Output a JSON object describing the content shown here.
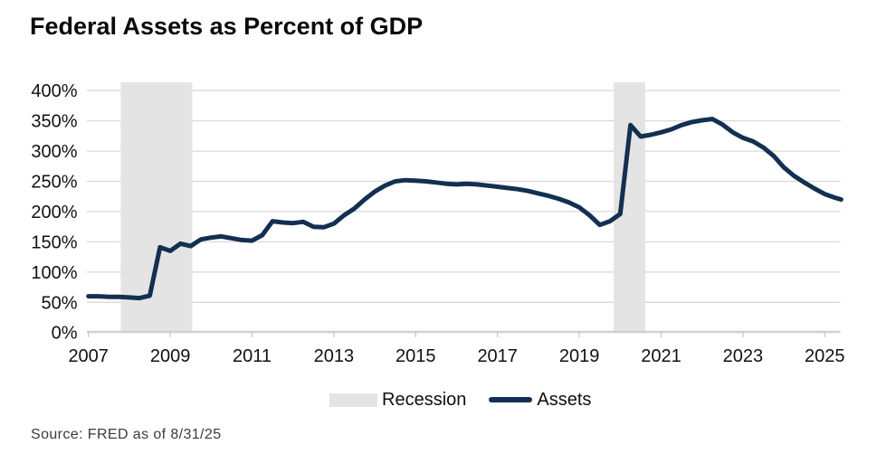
{
  "page": {
    "title": "Federal Assets as Percent of GDP",
    "source": "Source: FRED as of 8/31/25"
  },
  "legend": {
    "recession_label": "Recession",
    "assets_label": "Assets"
  },
  "chart_data": {
    "type": "line",
    "title": "Federal Assets as Percent of GDP",
    "xlabel": "",
    "ylabel": "",
    "xlim": [
      2007.0,
      2025.4
    ],
    "ylim": [
      0,
      400
    ],
    "grid": true,
    "legend_position": "bottom-center",
    "y_ticks": [
      {
        "value": 400,
        "label": "400%"
      },
      {
        "value": 350,
        "label": "350%"
      },
      {
        "value": 300,
        "label": "300%"
      },
      {
        "value": 250,
        "label": "250%"
      },
      {
        "value": 200,
        "label": "200%"
      },
      {
        "value": 150,
        "label": "150%"
      },
      {
        "value": 100,
        "label": "100%"
      },
      {
        "value": 50,
        "label": "50%"
      },
      {
        "value": 0,
        "label": "0%"
      }
    ],
    "x_ticks": [
      {
        "value": 2007,
        "label": "2007"
      },
      {
        "value": 2009,
        "label": "2009"
      },
      {
        "value": 2011,
        "label": "2011"
      },
      {
        "value": 2013,
        "label": "2013"
      },
      {
        "value": 2015,
        "label": "2015"
      },
      {
        "value": 2017,
        "label": "2017"
      },
      {
        "value": 2019,
        "label": "2019"
      },
      {
        "value": 2021,
        "label": "2021"
      },
      {
        "value": 2023,
        "label": "2023"
      },
      {
        "value": 2025,
        "label": "2025"
      }
    ],
    "recession_bands": [
      {
        "start": 2007.79,
        "end": 2009.54
      },
      {
        "start": 2019.84,
        "end": 2020.61
      }
    ],
    "series": [
      {
        "name": "Assets",
        "x": [
          2007.0,
          2007.25,
          2007.5,
          2007.75,
          2008.0,
          2008.25,
          2008.5,
          2008.75,
          2009.0,
          2009.25,
          2009.5,
          2009.75,
          2010.0,
          2010.25,
          2010.5,
          2010.75,
          2011.0,
          2011.25,
          2011.5,
          2011.75,
          2012.0,
          2012.25,
          2012.5,
          2012.75,
          2013.0,
          2013.25,
          2013.5,
          2013.75,
          2014.0,
          2014.25,
          2014.5,
          2014.75,
          2015.0,
          2015.25,
          2015.5,
          2015.75,
          2016.0,
          2016.25,
          2016.5,
          2016.75,
          2017.0,
          2017.25,
          2017.5,
          2017.75,
          2018.0,
          2018.25,
          2018.5,
          2018.75,
          2019.0,
          2019.25,
          2019.5,
          2019.75,
          2020.0,
          2020.25,
          2020.5,
          2020.75,
          2021.0,
          2021.25,
          2021.5,
          2021.75,
          2022.0,
          2022.25,
          2022.5,
          2022.75,
          2023.0,
          2023.25,
          2023.5,
          2023.75,
          2024.0,
          2024.25,
          2024.5,
          2024.75,
          2025.0,
          2025.25,
          2025.4
        ],
        "y": [
          60,
          60,
          59,
          59,
          58,
          57,
          61,
          141,
          135,
          147,
          143,
          154,
          157,
          159,
          156,
          153,
          152,
          161,
          184,
          182,
          181,
          183,
          175,
          174,
          180,
          194,
          205,
          220,
          233,
          243,
          250,
          252,
          251,
          250,
          248,
          246,
          245,
          246,
          245,
          243,
          241,
          239,
          237,
          234,
          230,
          226,
          221,
          215,
          207,
          194,
          178,
          184,
          196,
          343,
          324,
          327,
          331,
          336,
          343,
          348,
          351,
          353,
          344,
          331,
          322,
          316,
          306,
          292,
          273,
          259,
          248,
          238,
          229,
          223,
          220
        ]
      }
    ],
    "colors": {
      "assets_line": "#132F52",
      "recession_band": "#E4E4E4",
      "gridline": "#D9D9D9",
      "axis": "#C9C9C9",
      "tick_label": "#111111"
    }
  }
}
